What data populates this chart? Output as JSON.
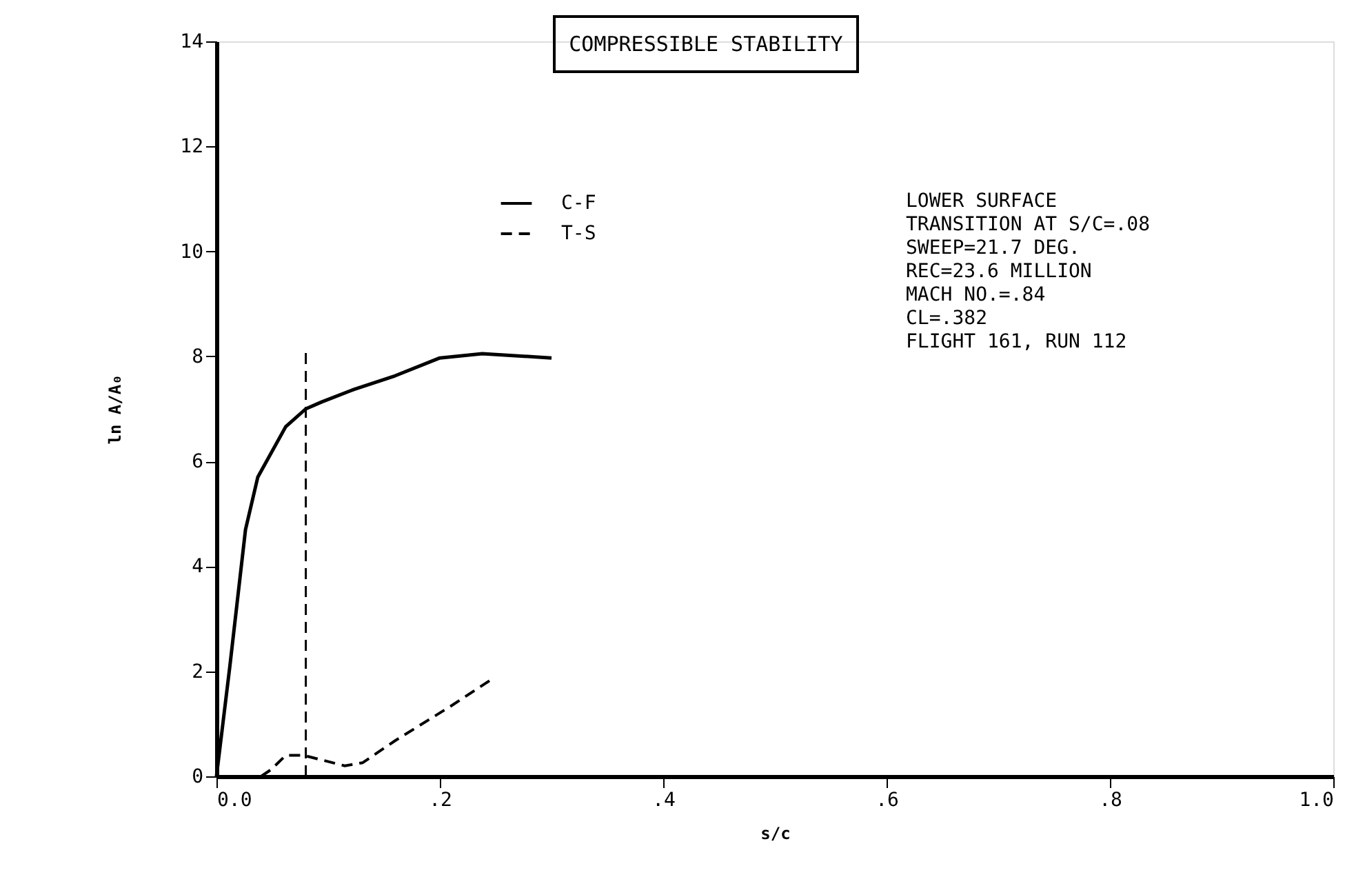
{
  "chart_data": {
    "type": "line",
    "title": "COMPRESSIBLE STABILITY",
    "xlabel": "s/c",
    "ylabel": "ln A/A₀",
    "xlim": [
      0,
      1
    ],
    "ylim": [
      0,
      14
    ],
    "xticks": [
      {
        "value": 0,
        "label": "0.0"
      },
      {
        "value": 0.2,
        "label": ".2"
      },
      {
        "value": 0.4,
        "label": ".4"
      },
      {
        "value": 0.6,
        "label": ".6"
      },
      {
        "value": 0.8,
        "label": ".8"
      },
      {
        "value": 1,
        "label": "1.0"
      }
    ],
    "yticks": [
      0,
      2,
      4,
      6,
      8,
      10,
      12,
      14
    ],
    "grid": false,
    "legend": "top",
    "marker": "none",
    "series": [
      {
        "name": "C-F",
        "color": "#000000",
        "line_style": "solid",
        "x": [
          0,
          0.012,
          0.026,
          0.037,
          0.062,
          0.08,
          0.094,
          0.123,
          0.16,
          0.2,
          0.238,
          0.3
        ],
        "values": [
          0,
          2.1,
          4.7,
          5.7,
          6.66,
          7.0,
          7.13,
          7.37,
          7.63,
          7.97,
          8.05,
          7.97
        ]
      },
      {
        "name": "T-S",
        "color": "#000000",
        "line_style": "dashed",
        "x": [
          0.04,
          0.049,
          0.062,
          0.078,
          0.115,
          0.131,
          0.16,
          0.21,
          0.248
        ],
        "values": [
          0,
          0.13,
          0.4,
          0.4,
          0.2,
          0.26,
          0.68,
          1.34,
          1.87
        ]
      },
      {
        "color": "#000000",
        "line_style": "dashed",
        "x": [
          0.08,
          0.08
        ],
        "values": [
          0,
          8.1
        ]
      }
    ],
    "annotations": [
      "LOWER SURFACE",
      "TRANSITION AT S/C=.08",
      "SWEEP=21.7 DEG.",
      "REC=23.6 MILLION",
      "MACH NO.=.84",
      "CL=.382",
      "FLIGHT 161, RUN 112"
    ]
  }
}
